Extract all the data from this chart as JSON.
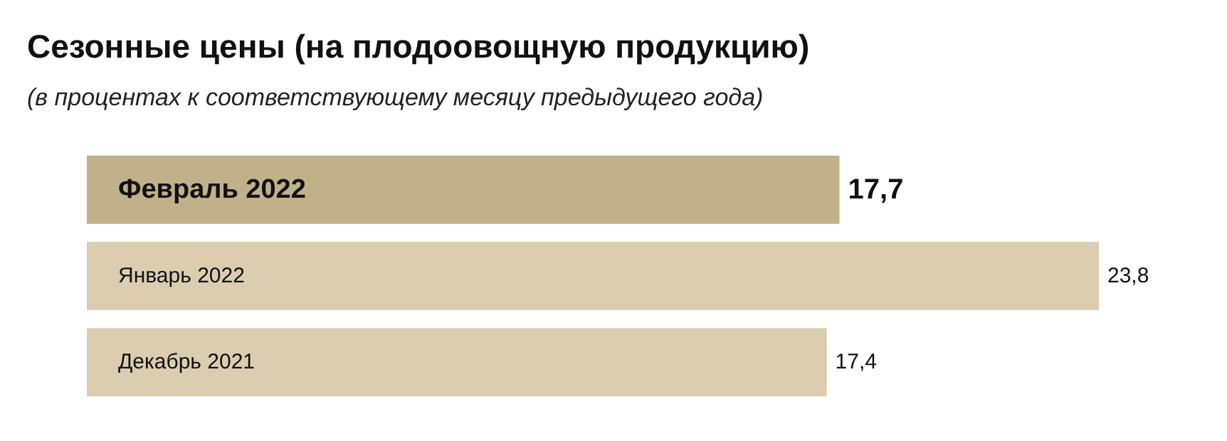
{
  "chart_data": {
    "type": "bar",
    "orientation": "horizontal",
    "title": "Сезонные цены (на плодоовощную продукцию)",
    "subtitle": "(в процентах к соответствующему месяцу предыдущего года)",
    "categories": [
      "Февраль 2022",
      "Январь 2022",
      "Декабрь 2021"
    ],
    "values": [
      17.7,
      23.8,
      17.4
    ],
    "colors": [
      "#c1b18b",
      "#dccdb0",
      "#dccdb0"
    ],
    "value_labels": [
      "17,7",
      "23,8",
      "17,4"
    ]
  }
}
